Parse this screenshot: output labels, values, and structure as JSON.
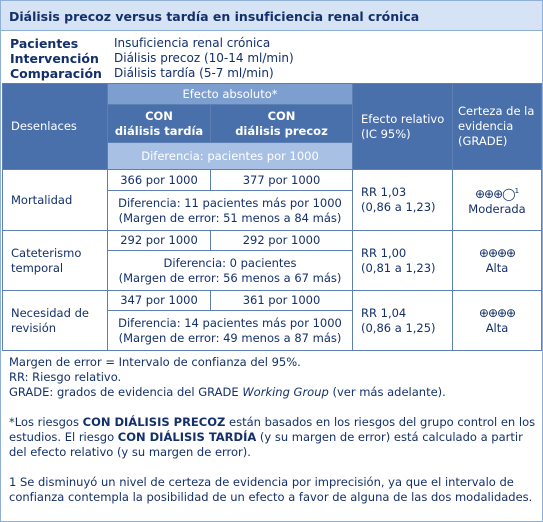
{
  "title": "Diálisis precoz versus tardía en insuficiencia renal crónica",
  "info": [
    {
      "label": "Pacientes",
      "value": "Insuficiencia renal crónica"
    },
    {
      "label": "Intervención",
      "value": "Diálisis precoz (10-14 ml/min)"
    },
    {
      "label": "Comparación",
      "value": "Diálisis tardía (5-7 ml/min)"
    }
  ],
  "table": {
    "header": {
      "outcomes": "Desenlaces",
      "absolute_effect": "Efecto absoluto*",
      "late": [
        "CON",
        "diálisis tardía"
      ],
      "early": [
        "CON",
        "diálisis precoz"
      ],
      "difference": "Diferencia: pacientes por 1000",
      "relative": [
        "Efecto relativo",
        "(IC 95%)"
      ],
      "certainty": [
        "Certeza de la",
        "evidencia",
        "(GRADE)"
      ]
    },
    "rows": [
      {
        "outcome": [
          "Mortalidad"
        ],
        "late": "366 por 1000",
        "early": "377 por 1000",
        "difference": [
          "Diferencia: 11 pacientes más por 1000",
          "(Margen de error: 51 menos a 84 más)"
        ],
        "relative": [
          "RR 1,03",
          "(0,86 a 1,23)"
        ],
        "certainty": {
          "symbols": "⊕⊕⊕◯",
          "note": "1",
          "label": "Moderada"
        }
      },
      {
        "outcome": [
          "Cateterismo",
          "temporal"
        ],
        "late": "292 por 1000",
        "early": "292 por 1000",
        "difference": [
          "Diferencia: 0 pacientes",
          "(Margen de error: 56 menos a 67 más)"
        ],
        "relative": [
          "RR 1,00",
          "(0,81 a 1,23)"
        ],
        "certainty": {
          "symbols": "⊕⊕⊕⊕",
          "label": "Alta"
        }
      },
      {
        "outcome": [
          "Necesidad de",
          "revisión"
        ],
        "late": "347 por 1000",
        "early": "361 por 1000",
        "difference": [
          "Diferencia: 14 pacientes más por 1000",
          "(Margen de error: 49 menos a 87 más)"
        ],
        "relative": [
          "RR 1,04",
          "(0,86 a 1,25)"
        ],
        "certainty": {
          "symbols": "⊕⊕⊕⊕",
          "label": "Alta"
        }
      }
    ]
  },
  "footer": {
    "definitions": [
      [
        "Margen de error = Intervalo de confianza del 95%."
      ],
      [
        "RR: Riesgo relativo."
      ],
      [
        "GRADE: grados de evidencia del GRADE ",
        "Working Group",
        " (ver más adelante)."
      ]
    ],
    "note_star": [
      "*Los riesgos ",
      "CON DIÁLISIS PRECOZ",
      " están basados en los riesgos del grupo control en los estudios. El riesgo ",
      "CON DIÁLISIS TARDÍA",
      " (y su margen de error) está calculado a partir del efecto relativo (y su margen de error)."
    ],
    "note_1": "1 Se disminuyó un nivel de certeza de evidencia por imprecisión, ya que el intervalo de confianza contempla la posibilidad de un efecto a favor de alguna de las dos modalidades."
  }
}
